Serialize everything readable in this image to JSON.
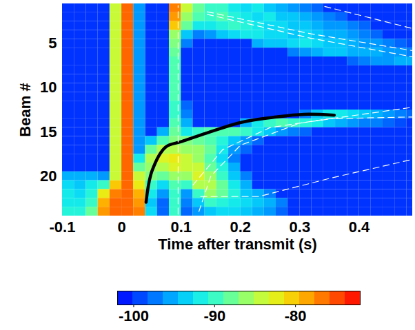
{
  "chart_data": {
    "type": "heatmap",
    "x_label": "Time after transmit (s)",
    "y_label": "Beam #",
    "xlim": [
      -0.1,
      0.49
    ],
    "xticks": [
      -0.1,
      0,
      0.1,
      0.2,
      0.3,
      0.4
    ],
    "ylim": [
      24.5,
      0.5
    ],
    "yticks": [
      5,
      10,
      15,
      20
    ],
    "x": [
      -0.09,
      -0.07,
      -0.05,
      -0.03,
      -0.01,
      0.01,
      0.03,
      0.05,
      0.07,
      0.09,
      0.11,
      0.13,
      0.15,
      0.17,
      0.19,
      0.21,
      0.23,
      0.25,
      0.27,
      0.29,
      0.31,
      0.33,
      0.35,
      0.37,
      0.39,
      0.41,
      0.43,
      0.45,
      0.47,
      0.49
    ],
    "y": [
      1,
      2,
      3,
      4,
      5,
      6,
      7,
      8,
      9,
      10,
      11,
      12,
      13,
      14,
      15,
      16,
      17,
      18,
      19,
      20,
      21,
      22,
      23,
      24
    ],
    "z": [
      [
        -100,
        -100,
        -100,
        -100,
        -84,
        -76,
        -96,
        -100,
        -100,
        -77,
        -84,
        -88,
        -90,
        -90,
        -92,
        -93,
        -92,
        -94,
        -95,
        -96,
        -97,
        -98,
        -100,
        -100,
        -100,
        -100,
        -100,
        -100,
        -100,
        -100
      ],
      [
        -100,
        -100,
        -100,
        -100,
        -84,
        -76,
        -96,
        -100,
        -100,
        -78,
        -86,
        -89,
        -90,
        -89,
        -91,
        -92,
        -93,
        -92,
        -94,
        -94,
        -95,
        -96,
        -97,
        -98,
        -100,
        -100,
        -100,
        -100,
        -100,
        -100
      ],
      [
        -100,
        -100,
        -100,
        -100,
        -84,
        -76,
        -96,
        -100,
        -100,
        -80,
        -88,
        -92,
        -92,
        -91,
        -90,
        -91,
        -92,
        -93,
        -93,
        -94,
        -94,
        -95,
        -96,
        -96,
        -97,
        -98,
        -100,
        -100,
        -100,
        -100
      ],
      [
        -100,
        -100,
        -100,
        -100,
        -84,
        -76,
        -96,
        -100,
        -100,
        -86,
        -94,
        -97,
        -96,
        -94,
        -93,
        -92,
        -92,
        -93,
        -93,
        -94,
        -93,
        -94,
        -95,
        -95,
        -96,
        -97,
        -98,
        -100,
        -100,
        -100
      ],
      [
        -100,
        -100,
        -100,
        -100,
        -84,
        -76,
        -96,
        -100,
        -100,
        -87,
        -97,
        -100,
        -100,
        -100,
        -100,
        -100,
        -95,
        -94,
        -94,
        -93,
        -92,
        -93,
        -94,
        -94,
        -95,
        -96,
        -96,
        -97,
        -98,
        -99
      ],
      [
        -100,
        -100,
        -100,
        -100,
        -84,
        -76,
        -96,
        -100,
        -100,
        -88,
        -100,
        -100,
        -100,
        -100,
        -100,
        -100,
        -100,
        -100,
        -100,
        -97,
        -96,
        -95,
        -94,
        -94,
        -95,
        -95,
        -95,
        -96,
        -96,
        -97
      ],
      [
        -100,
        -100,
        -100,
        -100,
        -84,
        -76,
        -96,
        -100,
        -100,
        -89,
        -100,
        -100,
        -100,
        -100,
        -100,
        -100,
        -100,
        -100,
        -100,
        -100,
        -100,
        -100,
        -100,
        -100,
        -98,
        -97,
        -96,
        -96,
        -95,
        -95
      ],
      [
        -100,
        -100,
        -100,
        -100,
        -84,
        -76,
        -96,
        -100,
        -100,
        -89,
        -100,
        -100,
        -100,
        -100,
        -100,
        -100,
        -100,
        -100,
        -100,
        -100,
        -100,
        -100,
        -100,
        -100,
        -100,
        -100,
        -100,
        -100,
        -100,
        -100
      ],
      [
        -100,
        -100,
        -100,
        -100,
        -84,
        -76,
        -96,
        -100,
        -100,
        -89,
        -100,
        -100,
        -100,
        -100,
        -100,
        -100,
        -100,
        -100,
        -100,
        -100,
        -100,
        -100,
        -100,
        -100,
        -100,
        -100,
        -100,
        -100,
        -100,
        -100
      ],
      [
        -100,
        -100,
        -100,
        -100,
        -84,
        -76,
        -96,
        -100,
        -100,
        -89,
        -100,
        -100,
        -100,
        -100,
        -100,
        -100,
        -100,
        -100,
        -100,
        -100,
        -100,
        -100,
        -100,
        -100,
        -100,
        -100,
        -100,
        -100,
        -100,
        -100
      ],
      [
        -100,
        -100,
        -100,
        -100,
        -84,
        -76,
        -96,
        -100,
        -100,
        -89,
        -100,
        -100,
        -100,
        -100,
        -100,
        -100,
        -100,
        -100,
        -100,
        -100,
        -100,
        -100,
        -100,
        -100,
        -100,
        -100,
        -100,
        -100,
        -100,
        -100
      ],
      [
        -100,
        -100,
        -100,
        -100,
        -84,
        -76,
        -96,
        -100,
        -100,
        -90,
        -98,
        -100,
        -100,
        -100,
        -100,
        -100,
        -100,
        -100,
        -100,
        -100,
        -100,
        -100,
        -100,
        -100,
        -100,
        -100,
        -100,
        -100,
        -100,
        -100
      ],
      [
        -100,
        -100,
        -100,
        -100,
        -84,
        -76,
        -96,
        -100,
        -100,
        -90,
        -97,
        -100,
        -100,
        -100,
        -100,
        -100,
        -100,
        -100,
        -100,
        -100,
        -97,
        -94,
        -92,
        -92,
        -93,
        -94,
        -95,
        -96,
        -97,
        -98
      ],
      [
        -100,
        -100,
        -100,
        -100,
        -84,
        -76,
        -96,
        -100,
        -100,
        -89,
        -95,
        -100,
        -100,
        -100,
        -100,
        -95,
        -92,
        -90,
        -89,
        -90,
        -91,
        -92,
        -94,
        -95,
        -96,
        -97,
        -97,
        -98,
        -99,
        -100
      ],
      [
        -100,
        -100,
        -100,
        -100,
        -84,
        -76,
        -96,
        -100,
        -95,
        -88,
        -92,
        -90,
        -89,
        -89,
        -89,
        -90,
        -92,
        -94,
        -96,
        -97,
        -98,
        -100,
        -100,
        -100,
        -100,
        -100,
        -100,
        -100,
        -100,
        -100
      ],
      [
        -100,
        -100,
        -100,
        -100,
        -84,
        -76,
        -96,
        -94,
        -89,
        -87,
        -87,
        -88,
        -89,
        -91,
        -94,
        -96,
        -98,
        -100,
        -100,
        -100,
        -100,
        -100,
        -100,
        -100,
        -100,
        -100,
        -100,
        -100,
        -100,
        -100
      ],
      [
        -100,
        -100,
        -100,
        -100,
        -84,
        -76,
        -96,
        -88,
        -85,
        -85,
        -86,
        -86,
        -88,
        -92,
        -96,
        -98,
        -100,
        -100,
        -100,
        -100,
        -100,
        -100,
        -100,
        -100,
        -100,
        -100,
        -100,
        -100,
        -100,
        -100
      ],
      [
        -100,
        -100,
        -100,
        -100,
        -84,
        -76,
        -92,
        -85,
        -83,
        -82,
        -84,
        -86,
        -89,
        -93,
        -97,
        -100,
        -100,
        -100,
        -100,
        -100,
        -100,
        -100,
        -100,
        -100,
        -100,
        -100,
        -100,
        -100,
        -100,
        -100
      ],
      [
        -100,
        -100,
        -100,
        -100,
        -84,
        -76,
        -88,
        -86,
        -85,
        -83,
        -84,
        -84,
        -88,
        -91,
        -95,
        -100,
        -100,
        -100,
        -100,
        -100,
        -100,
        -100,
        -100,
        -100,
        -100,
        -100,
        -100,
        -100,
        -100,
        -100
      ],
      [
        -95,
        -95,
        -95,
        -96,
        -84,
        -76,
        -84,
        -87,
        -88,
        -86,
        -86,
        -83,
        -86,
        -90,
        -94,
        -97,
        -100,
        -100,
        -100,
        -100,
        -100,
        -100,
        -100,
        -100,
        -100,
        -100,
        -100,
        -100,
        -100,
        -100
      ],
      [
        -93,
        -94,
        -92,
        -90,
        -80,
        -76,
        -82,
        -90,
        -93,
        -89,
        -90,
        -85,
        -85,
        -88,
        -92,
        -95,
        -100,
        -100,
        -100,
        -100,
        -100,
        -100,
        -100,
        -100,
        -100,
        -100,
        -100,
        -100,
        -100,
        -100
      ],
      [
        -92,
        -93,
        -91,
        -82,
        -77,
        -76,
        -79,
        -92,
        -96,
        -90,
        -96,
        -90,
        -86,
        -88,
        -91,
        -94,
        -95,
        -97,
        -100,
        -100,
        -100,
        -100,
        -100,
        -100,
        -100,
        -100,
        -100,
        -100,
        -100,
        -100
      ],
      [
        -92,
        -92,
        -90,
        -79,
        -76,
        -76,
        -78,
        -94,
        -98,
        -90,
        -97,
        -94,
        -90,
        -91,
        -92,
        -93,
        -94,
        -95,
        -97,
        -100,
        -100,
        -100,
        -100,
        -100,
        -100,
        -100,
        -100,
        -100,
        -100,
        -100
      ],
      [
        -91,
        -91,
        -88,
        -78,
        -76,
        -76,
        -77,
        -93,
        -98,
        -90,
        -98,
        -96,
        -94,
        -93,
        -93,
        -94,
        -95,
        -96,
        -98,
        -100,
        -100,
        -100,
        -100,
        -100,
        -100,
        -100,
        -100,
        -100,
        -100,
        -100
      ]
    ],
    "colorbar": {
      "range": [
        -102,
        -72
      ],
      "ticks": [
        -100,
        -90,
        -80
      ]
    },
    "series": [
      {
        "color": "black",
        "line_style": "solid",
        "x": [
          0.041,
          0.051,
          0.074,
          0.1,
          0.144,
          0.202,
          0.26,
          0.307,
          0.358
        ],
        "values": [
          22.95,
          19.4,
          16.7,
          16.1,
          15.1,
          13.9,
          13.3,
          13.0,
          13.1
        ]
      },
      {
        "color": "white",
        "line_style": "dashed",
        "x": [
          0.095,
          0.095
        ],
        "values": [
          24.3,
          0.7
        ]
      },
      {
        "color": "white",
        "line_style": "dashed",
        "x": [
          0.144,
          0.319,
          0.49
        ],
        "values": [
          1.4,
          3.9,
          5.8
        ]
      },
      {
        "color": "white",
        "line_style": "dashed",
        "x": [
          0.144,
          0.319,
          0.49
        ],
        "values": [
          1.7,
          4.4,
          6.5
        ]
      },
      {
        "color": "white",
        "line_style": "dashed",
        "x": [
          0.342,
          0.49
        ],
        "values": [
          0.8,
          3.3
        ]
      },
      {
        "color": "white",
        "line_style": "dashed",
        "x": [
          0.13,
          0.15,
          0.2,
          0.3,
          0.49
        ],
        "values": [
          24,
          20,
          16.5,
          14,
          12.2
        ]
      },
      {
        "color": "white",
        "line_style": "dashed",
        "x": [
          0.12,
          0.17,
          0.25,
          0.35,
          0.49
        ],
        "values": [
          21,
          17,
          14.5,
          13.5,
          13.3
        ]
      },
      {
        "color": "white",
        "line_style": "dashed",
        "x": [
          0.133,
          0.231,
          0.353,
          0.49
        ],
        "values": [
          22.3,
          22.3,
          20.2,
          18.1
        ]
      }
    ]
  }
}
